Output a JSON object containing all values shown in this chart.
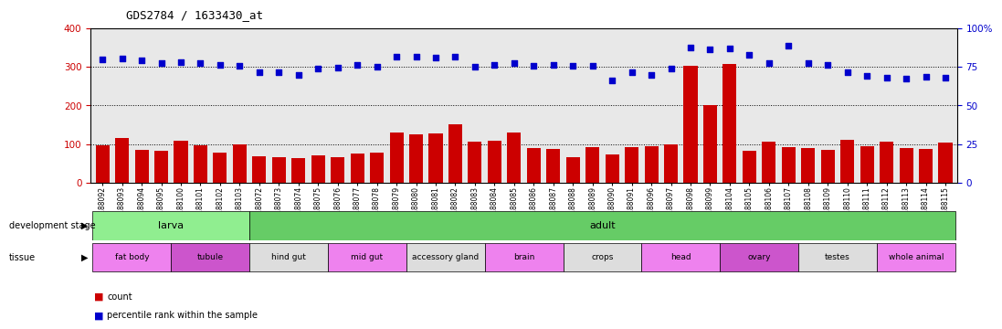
{
  "title": "GDS2784 / 1633430_at",
  "samples": [
    "GSM188092",
    "GSM188093",
    "GSM188094",
    "GSM188095",
    "GSM188100",
    "GSM188101",
    "GSM188102",
    "GSM188103",
    "GSM188072",
    "GSM188073",
    "GSM188074",
    "GSM188075",
    "GSM188076",
    "GSM188077",
    "GSM188078",
    "GSM188079",
    "GSM188080",
    "GSM188081",
    "GSM188082",
    "GSM188083",
    "GSM188084",
    "GSM188085",
    "GSM188086",
    "GSM188087",
    "GSM188088",
    "GSM188089",
    "GSM188090",
    "GSM188091",
    "GSM188096",
    "GSM188097",
    "GSM188098",
    "GSM188099",
    "GSM188104",
    "GSM188105",
    "GSM188106",
    "GSM188107",
    "GSM188108",
    "GSM188109",
    "GSM188110",
    "GSM188111",
    "GSM188112",
    "GSM188113",
    "GSM188114",
    "GSM188115"
  ],
  "counts": [
    96,
    116,
    86,
    83,
    109,
    97,
    77,
    98,
    68,
    66,
    64,
    70,
    67,
    75,
    77,
    130,
    125,
    127,
    150,
    105,
    109,
    131,
    90,
    87,
    65,
    91,
    73,
    92,
    95,
    100,
    302,
    200,
    308,
    82,
    105,
    93,
    90,
    85,
    112,
    95,
    105,
    90,
    88,
    103
  ],
  "percentiles": [
    320,
    322,
    318,
    310,
    313,
    310,
    304,
    302,
    287,
    285,
    280,
    295,
    298,
    304,
    300,
    326,
    327,
    324,
    327,
    300,
    306,
    310,
    302,
    305,
    302,
    302,
    265,
    285,
    280,
    295,
    350,
    345,
    348,
    330,
    310,
    355,
    310,
    305,
    285,
    276,
    272,
    270,
    275,
    272
  ],
  "dev_stages": [
    {
      "label": "larva",
      "start": 0,
      "end": 8,
      "color": "#90EE90"
    },
    {
      "label": "adult",
      "start": 8,
      "end": 44,
      "color": "#66CC66"
    }
  ],
  "tissues": [
    {
      "label": "fat body",
      "start": 0,
      "end": 4,
      "color": "#EE82EE"
    },
    {
      "label": "tubule",
      "start": 4,
      "end": 8,
      "color": "#CC55CC"
    },
    {
      "label": "hind gut",
      "start": 8,
      "end": 12,
      "color": "#DDDDDD"
    },
    {
      "label": "mid gut",
      "start": 12,
      "end": 16,
      "color": "#EE82EE"
    },
    {
      "label": "accessory gland",
      "start": 16,
      "end": 20,
      "color": "#DDDDDD"
    },
    {
      "label": "brain",
      "start": 20,
      "end": 24,
      "color": "#EE82EE"
    },
    {
      "label": "crops",
      "start": 24,
      "end": 28,
      "color": "#DDDDDD"
    },
    {
      "label": "head",
      "start": 28,
      "end": 32,
      "color": "#EE82EE"
    },
    {
      "label": "ovary",
      "start": 32,
      "end": 36,
      "color": "#CC55CC"
    },
    {
      "label": "testes",
      "start": 36,
      "end": 40,
      "color": "#DDDDDD"
    },
    {
      "label": "whole animal",
      "start": 40,
      "end": 44,
      "color": "#EE82EE"
    }
  ],
  "bar_color": "#CC0000",
  "dot_color": "#0000CC",
  "background_color": "#E8E8E8",
  "legend_count_color": "#CC0000",
  "legend_dot_color": "#0000CC"
}
